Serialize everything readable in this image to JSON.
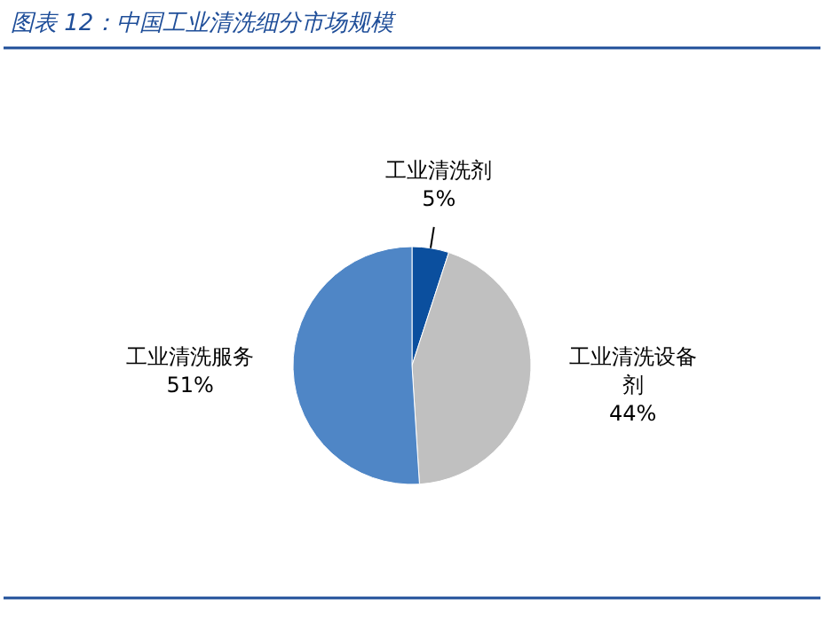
{
  "chart_data": {
    "type": "pie",
    "title": "图表 12：中国工业清洗细分市场规模",
    "categories": [
      "工业清洗剂",
      "工业清洗设备剂",
      "工业清洗服务"
    ],
    "values": [
      5,
      44,
      51
    ],
    "value_labels": [
      "5%",
      "44%",
      "51%"
    ],
    "colors": [
      "#0b4f9e",
      "#c0c0c0",
      "#4f86c6"
    ]
  }
}
